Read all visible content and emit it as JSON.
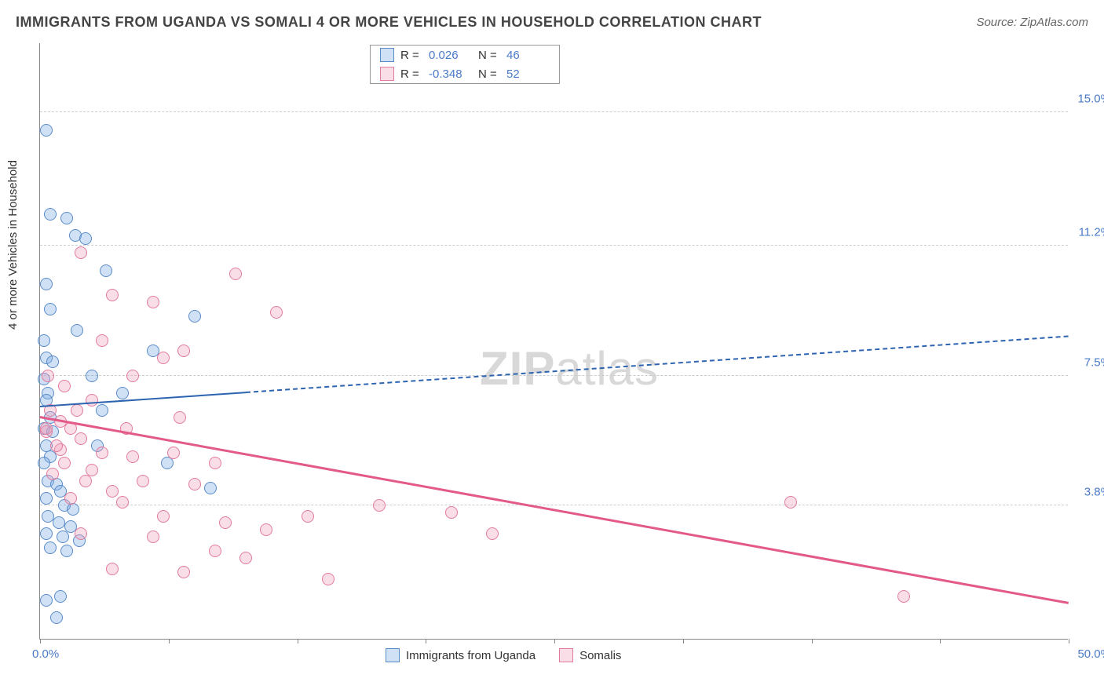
{
  "title": "IMMIGRANTS FROM UGANDA VS SOMALI 4 OR MORE VEHICLES IN HOUSEHOLD CORRELATION CHART",
  "source": "Source: ZipAtlas.com",
  "watermark": {
    "bold": "ZIP",
    "rest": "atlas"
  },
  "y_axis_label": "4 or more Vehicles in Household",
  "chart": {
    "type": "scatter",
    "xlim": [
      0,
      50
    ],
    "ylim": [
      0,
      17
    ],
    "x_ticks": [
      0,
      6.25,
      12.5,
      18.75,
      25,
      31.25,
      37.5,
      43.75,
      50
    ],
    "x_tick_labels": {
      "min": "0.0%",
      "max": "50.0%"
    },
    "y_gridlines": [
      3.8,
      7.5,
      11.2,
      15.0
    ],
    "y_tick_labels": [
      "3.8%",
      "7.5%",
      "11.2%",
      "15.0%"
    ],
    "grid_color": "#cccccc",
    "background": "#ffffff",
    "point_radius": 8,
    "point_stroke_width": 1.5
  },
  "series": [
    {
      "name": "Immigrants from Uganda",
      "color_fill": "rgba(120,170,225,0.35)",
      "color_stroke": "#5a8bc9",
      "R": "0.026",
      "N": "46",
      "trend": {
        "x1": 0,
        "y1": 6.6,
        "x2": 50,
        "y2": 8.6,
        "solid_until_x": 10,
        "color": "#2d64b0",
        "width": 2
      },
      "points": [
        [
          0.3,
          14.5
        ],
        [
          0.5,
          12.1
        ],
        [
          1.3,
          12.0
        ],
        [
          1.7,
          11.5
        ],
        [
          2.2,
          11.4
        ],
        [
          3.2,
          10.5
        ],
        [
          0.3,
          10.1
        ],
        [
          0.5,
          9.4
        ],
        [
          0.2,
          8.5
        ],
        [
          0.3,
          8.0
        ],
        [
          0.6,
          7.9
        ],
        [
          0.2,
          7.4
        ],
        [
          0.4,
          7.0
        ],
        [
          0.3,
          6.8
        ],
        [
          0.5,
          6.3
        ],
        [
          0.2,
          6.0
        ],
        [
          0.6,
          5.9
        ],
        [
          0.3,
          5.5
        ],
        [
          0.5,
          5.2
        ],
        [
          0.2,
          5.0
        ],
        [
          0.4,
          4.5
        ],
        [
          0.8,
          4.4
        ],
        [
          1.0,
          4.2
        ],
        [
          0.3,
          4.0
        ],
        [
          1.2,
          3.8
        ],
        [
          1.6,
          3.7
        ],
        [
          0.4,
          3.5
        ],
        [
          0.9,
          3.3
        ],
        [
          1.5,
          3.2
        ],
        [
          0.3,
          3.0
        ],
        [
          1.1,
          2.9
        ],
        [
          1.9,
          2.8
        ],
        [
          0.5,
          2.6
        ],
        [
          1.3,
          2.5
        ],
        [
          0.3,
          1.1
        ],
        [
          0.8,
          0.6
        ],
        [
          5.5,
          8.2
        ],
        [
          6.2,
          5.0
        ],
        [
          7.5,
          9.2
        ],
        [
          8.3,
          4.3
        ],
        [
          2.5,
          7.5
        ],
        [
          3.0,
          6.5
        ],
        [
          1.0,
          1.2
        ],
        [
          4.0,
          7.0
        ],
        [
          1.8,
          8.8
        ],
        [
          2.8,
          5.5
        ]
      ]
    },
    {
      "name": "Somalis",
      "color_fill": "rgba(240,160,185,0.35)",
      "color_stroke": "#e27b9e",
      "R": "-0.348",
      "N": "52",
      "trend": {
        "x1": 0,
        "y1": 6.3,
        "x2": 50,
        "y2": 1.0,
        "solid_until_x": 50,
        "color": "#e35a87",
        "width": 2.5
      },
      "points": [
        [
          2.0,
          11.0
        ],
        [
          3.5,
          9.8
        ],
        [
          5.5,
          9.6
        ],
        [
          3.0,
          8.5
        ],
        [
          6.0,
          8.0
        ],
        [
          1.2,
          7.2
        ],
        [
          2.5,
          6.8
        ],
        [
          4.5,
          7.5
        ],
        [
          7.0,
          8.2
        ],
        [
          9.5,
          10.4
        ],
        [
          11.5,
          9.3
        ],
        [
          0.5,
          6.5
        ],
        [
          1.0,
          6.2
        ],
        [
          1.5,
          6.0
        ],
        [
          0.3,
          5.9
        ],
        [
          2.0,
          5.7
        ],
        [
          1.0,
          5.4
        ],
        [
          3.0,
          5.3
        ],
        [
          4.5,
          5.2
        ],
        [
          6.5,
          5.3
        ],
        [
          8.5,
          5.0
        ],
        [
          2.5,
          4.8
        ],
        [
          5.0,
          4.5
        ],
        [
          7.5,
          4.4
        ],
        [
          3.5,
          4.2
        ],
        [
          1.5,
          4.0
        ],
        [
          4.0,
          3.9
        ],
        [
          6.0,
          3.5
        ],
        [
          9.0,
          3.3
        ],
        [
          11.0,
          3.1
        ],
        [
          13.0,
          3.5
        ],
        [
          2.0,
          3.0
        ],
        [
          5.5,
          2.9
        ],
        [
          8.5,
          2.5
        ],
        [
          10.0,
          2.3
        ],
        [
          3.5,
          2.0
        ],
        [
          7.0,
          1.9
        ],
        [
          14.0,
          1.7
        ],
        [
          16.5,
          3.8
        ],
        [
          20.0,
          3.6
        ],
        [
          22.0,
          3.0
        ],
        [
          36.5,
          3.9
        ],
        [
          42.0,
          1.2
        ],
        [
          0.3,
          6.0
        ],
        [
          0.8,
          5.5
        ],
        [
          1.2,
          5.0
        ],
        [
          0.6,
          4.7
        ],
        [
          2.2,
          4.5
        ],
        [
          4.2,
          6.0
        ],
        [
          6.8,
          6.3
        ],
        [
          1.8,
          6.5
        ],
        [
          0.4,
          7.5
        ]
      ]
    }
  ],
  "stats_legend_labels": {
    "R": "R =",
    "N": "N ="
  },
  "bottom_legend": true
}
